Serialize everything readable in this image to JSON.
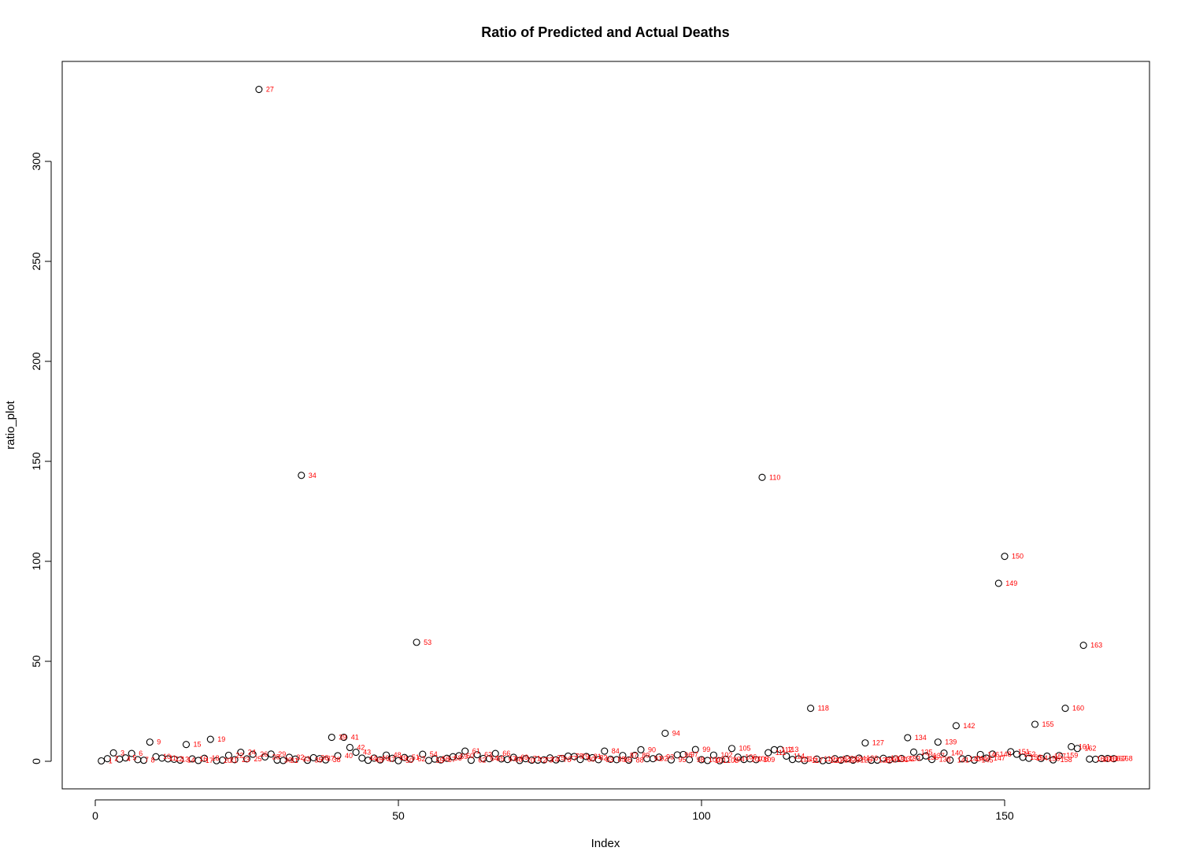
{
  "chart_data": {
    "type": "scatter",
    "title": "Ratio of Predicted and Actual Deaths",
    "xlabel": "Index",
    "ylabel": "ratio_plot",
    "xlim": [
      1,
      168
    ],
    "ylim": [
      0,
      336
    ],
    "x_ticks": [
      0,
      50,
      100,
      150
    ],
    "y_ticks": [
      0,
      50,
      100,
      150,
      200,
      250,
      300
    ],
    "grid": false,
    "legend": "none",
    "point_color": "#000000",
    "label_color": "#ff0000",
    "values": [
      0.2,
      1.3,
      4.2,
      1.1,
      1.7,
      3.9,
      0.8,
      0.5,
      9.6,
      2.3,
      1.6,
      1.2,
      1.0,
      0.6,
      8.4,
      1.2,
      0.4,
      1.5,
      11.0,
      0.3,
      0.6,
      3.0,
      0.8,
      4.5,
      1.2,
      3.5,
      336.0,
      2.2,
      3.6,
      0.6,
      0.4,
      2.0,
      1.1,
      143.0,
      0.5,
      1.8,
      1.3,
      0.7,
      12.0,
      2.8,
      12.0,
      6.9,
      4.5,
      1.6,
      0.5,
      1.6,
      0.7,
      3.1,
      1.5,
      0.3,
      1.9,
      1.1,
      59.5,
      3.5,
      0.4,
      1.1,
      0.7,
      1.5,
      2.3,
      2.8,
      5.1,
      0.5,
      3.3,
      1.4,
      1.3,
      3.9,
      1.2,
      0.9,
      2.0,
      0.4,
      1.3,
      0.6,
      0.6,
      0.7,
      1.7,
      0.7,
      1.4,
      2.6,
      2.4,
      0.9,
      2.4,
      1.8,
      0.8,
      5.1,
      1.0,
      0.8,
      2.9,
      0.6,
      3.0,
      5.8,
      1.3,
      1.3,
      2.1,
      14.0,
      0.7,
      3.2,
      3.4,
      0.8,
      5.9,
      0.8,
      0.4,
      3.1,
      0.3,
      1.0,
      6.4,
      2.1,
      0.9,
      1.2,
      0.8,
      142.0,
      4.3,
      5.8,
      5.9,
      2.6,
      0.9,
      1.2,
      0.4,
      26.5,
      1.1,
      0.3,
      0.5,
      1.3,
      0.6,
      1.3,
      0.6,
      1.6,
      9.2,
      0.5,
      0.6,
      1.5,
      0.7,
      1.2,
      1.4,
      11.8,
      4.6,
      2.0,
      2.7,
      0.9,
      9.6,
      4.1,
      0.6,
      17.8,
      1.2,
      1.4,
      0.6,
      3.4,
      1.6,
      3.6,
      89.0,
      102.5,
      4.8,
      3.5,
      2.0,
      1.5,
      18.5,
      1.4,
      2.6,
      0.7,
      2.9,
      26.5,
      7.3,
      6.4,
      58.0,
      1.1,
      1.0,
      1.4,
      1.4,
      1.3
    ]
  }
}
